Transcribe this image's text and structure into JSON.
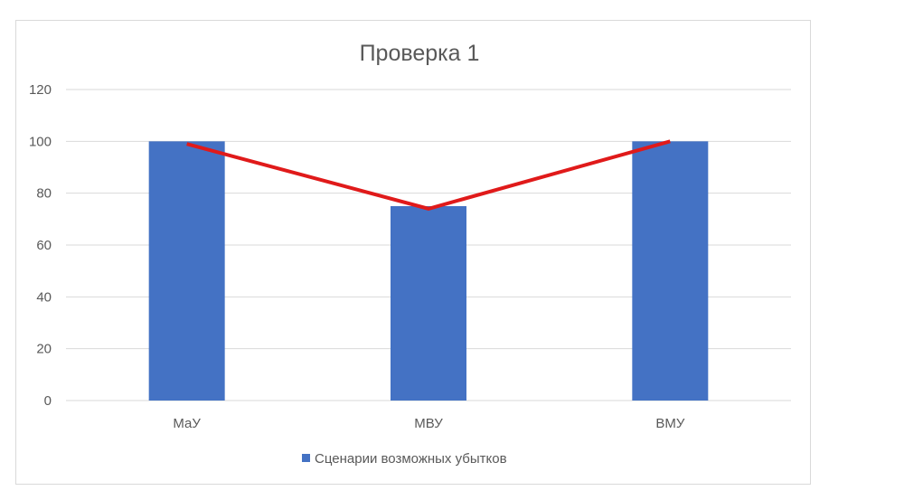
{
  "chart_data": {
    "type": "bar",
    "title": "Проверка 1",
    "categories": [
      "МаУ",
      "МВУ",
      "ВМУ"
    ],
    "series": [
      {
        "name": "Сценарии возможных убытков",
        "type": "bar",
        "color": "#4472c4",
        "values": [
          100,
          75,
          100
        ]
      },
      {
        "type": "line",
        "color": "#e01a1a",
        "values": [
          99,
          74,
          100
        ]
      }
    ],
    "ylim": [
      0,
      120
    ],
    "yticks": [
      0,
      20,
      40,
      60,
      80,
      100,
      120
    ],
    "xlabel": "",
    "ylabel": "",
    "grid": true,
    "legend": "bottom"
  }
}
